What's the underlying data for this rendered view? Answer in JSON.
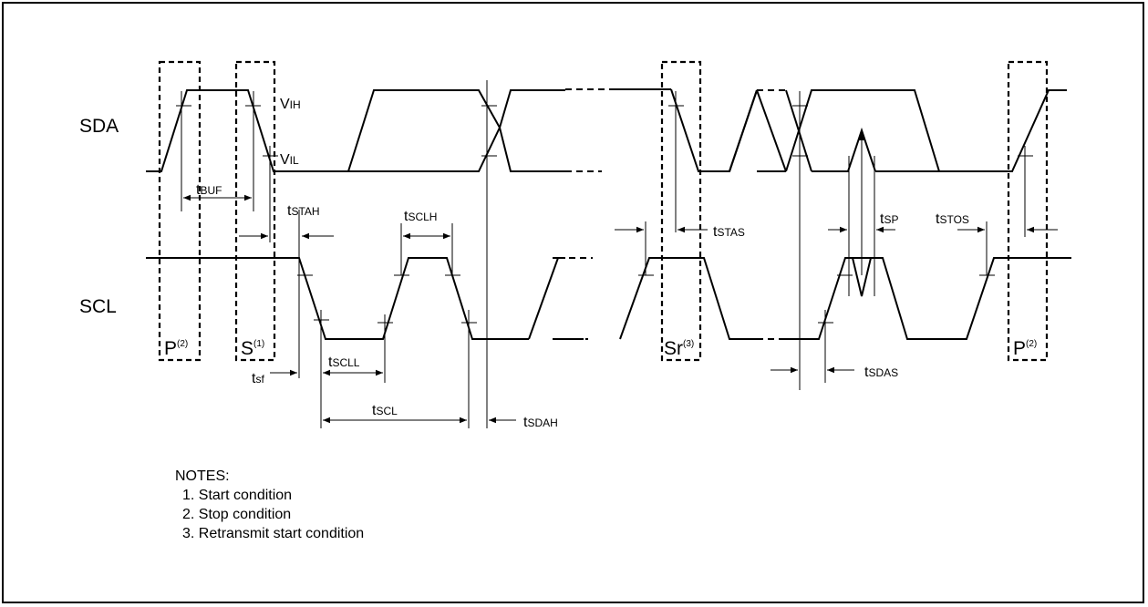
{
  "signals": {
    "sda": "SDA",
    "scl": "SCL"
  },
  "levels": {
    "vih": {
      "main": "V",
      "sub": "IH"
    },
    "vil": {
      "main": "V",
      "sub": "IL"
    }
  },
  "conditions": {
    "p_left": {
      "main": "P",
      "sup": "(2)"
    },
    "s": {
      "main": "S",
      "sup": "(1)"
    },
    "sr": {
      "main": "Sr",
      "sup": "(3)"
    },
    "p_right": {
      "main": "P",
      "sup": "(2)"
    }
  },
  "timing": {
    "tbuf": {
      "main": "t",
      "sub": "BUF"
    },
    "tstah": {
      "main": "t",
      "sub": "STAH"
    },
    "tsclh": {
      "main": "t",
      "sub": "SCLH"
    },
    "tstas": {
      "main": "t",
      "sub": "STAS"
    },
    "tsp": {
      "main": "t",
      "sub": "SP"
    },
    "tstos": {
      "main": "t",
      "sub": "STOS"
    },
    "tsf": {
      "main": "t",
      "sub": "sf"
    },
    "tscll": {
      "main": "t",
      "sub": "SCLL"
    },
    "tscl": {
      "main": "t",
      "sub": "SCL"
    },
    "tsdah": {
      "main": "t",
      "sub": "SDAH"
    },
    "tsdas": {
      "main": "t",
      "sub": "SDAS"
    }
  },
  "notes": {
    "title": "NOTES:",
    "items": [
      "1. Start condition",
      "2. Stop condition",
      "3. Retransmit start condition"
    ]
  }
}
